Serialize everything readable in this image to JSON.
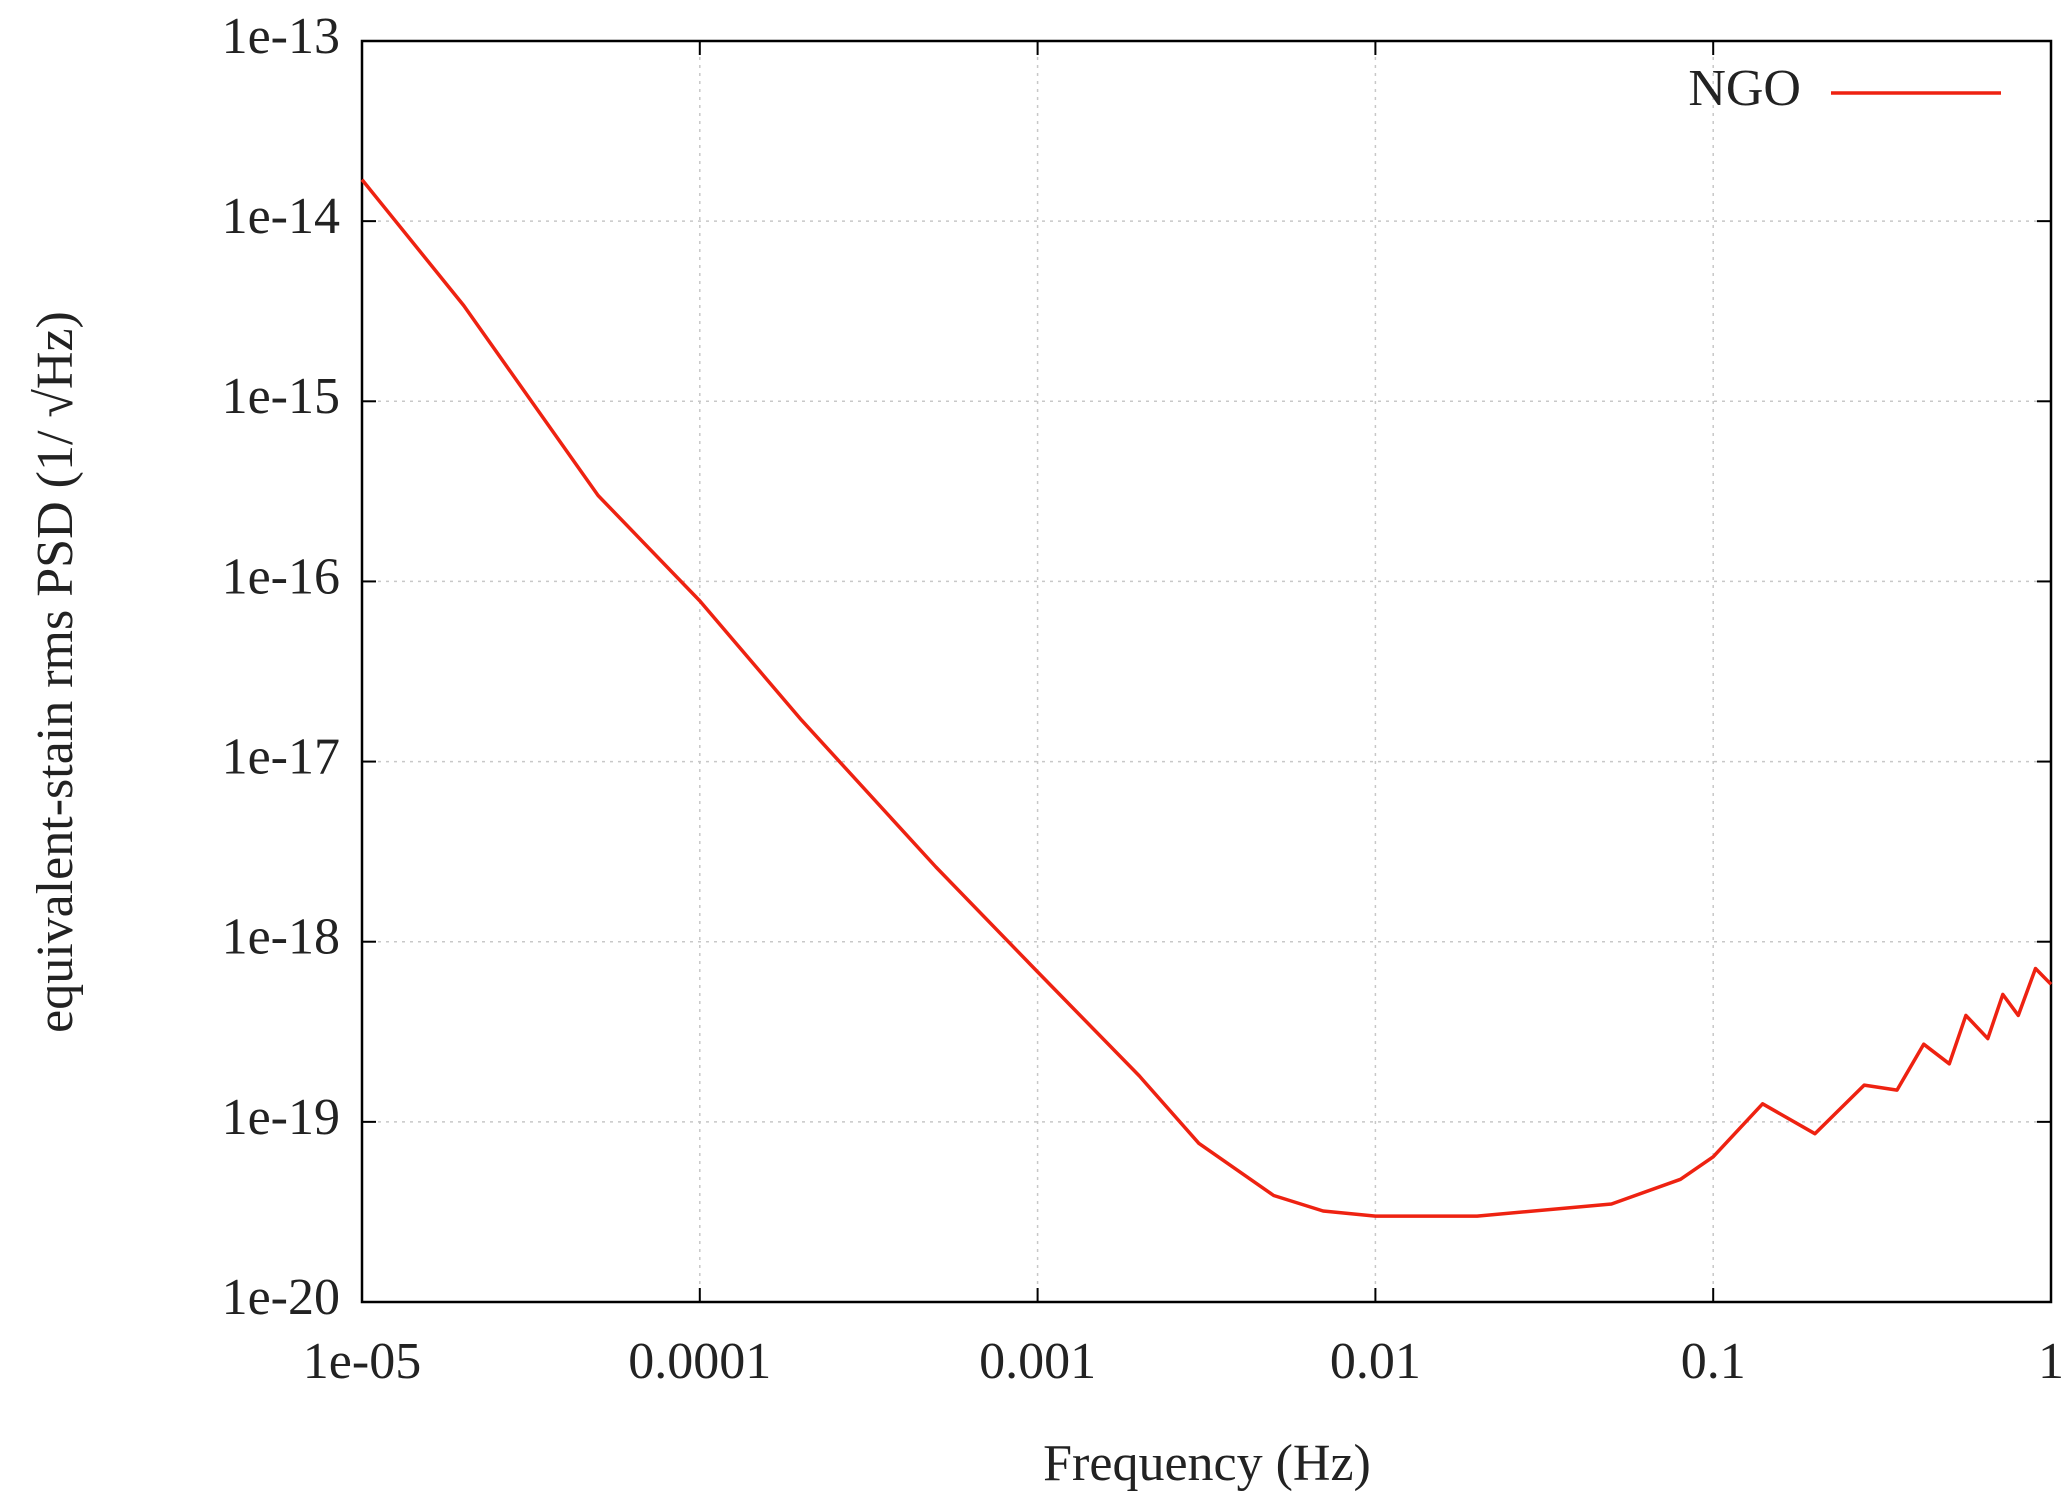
{
  "chart_data": {
    "type": "line",
    "x_label": "Frequency (Hz)",
    "y_label": "equivalent-stain rms PSD (1/ √Hz)",
    "x": [
      1e-05,
      2e-05,
      5e-05,
      0.0001,
      0.0002,
      0.0005,
      0.001,
      0.002,
      0.003,
      0.005,
      0.007,
      0.01,
      0.02,
      0.05,
      0.08,
      0.1,
      0.14,
      0.2,
      0.28,
      0.35,
      0.42,
      0.5,
      0.56,
      0.65,
      0.72,
      0.8,
      0.9,
      1
    ],
    "series": [
      {
        "name": "NGO",
        "color": "#ee2211",
        "values": [
          1.7e-14,
          3.4e-15,
          3e-16,
          7.8e-17,
          1.7e-17,
          2.6e-18,
          6.8e-19,
          1.8e-19,
          7.6e-20,
          3.9e-20,
          3.2e-20,
          3e-20,
          3e-20,
          3.5e-20,
          4.8e-20,
          6.4e-20,
          1.26e-19,
          8.6e-20,
          1.6e-19,
          1.5e-19,
          2.7e-19,
          2.1e-19,
          3.9e-19,
          2.9e-19,
          5.1e-19,
          3.9e-19,
          7.1e-19,
          5.8e-19
        ]
      }
    ],
    "xlim": [
      1e-05,
      1
    ],
    "ylim": [
      1e-20,
      1e-13
    ],
    "xticks": [
      {
        "value": 1e-05,
        "label": "1e-05"
      },
      0.0001,
      0.001,
      0.01,
      0.1,
      1
    ],
    "yticks": [
      1e-20,
      1e-19,
      1e-18,
      1e-17,
      1e-16,
      1e-15,
      1e-14,
      1e-13
    ],
    "xscale": "log",
    "yscale": "log",
    "grid": true,
    "legend": "upper right"
  }
}
